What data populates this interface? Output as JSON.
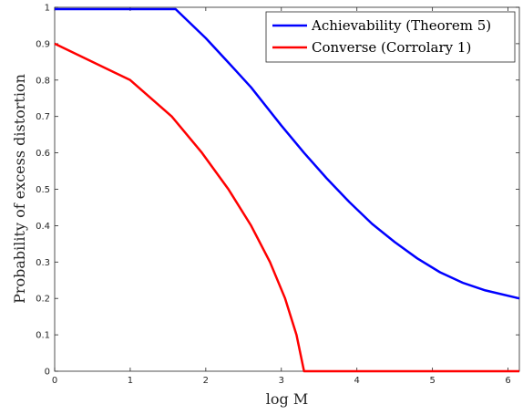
{
  "chart_data": {
    "type": "line",
    "xlabel": "log M",
    "ylabel": "Probability of excess distortion",
    "xlim": [
      0,
      6.15
    ],
    "ylim": [
      0,
      1
    ],
    "xticks": [
      "0",
      "1",
      "2",
      "3",
      "4",
      "5",
      "6"
    ],
    "yticks": [
      "0",
      "0.1",
      "0.2",
      "0.3",
      "0.4",
      "0.5",
      "0.6",
      "0.7",
      "0.8",
      "0.9",
      "1"
    ],
    "grid": false,
    "legend_position": "top-right",
    "series": [
      {
        "name": "Achievability (Theorem 5)",
        "color": "#0000ff",
        "x": [
          0,
          1.6,
          2.0,
          2.3,
          2.6,
          3.0,
          3.3,
          3.6,
          3.9,
          4.2,
          4.5,
          4.8,
          5.1,
          5.4,
          5.7,
          6.15
        ],
        "y": [
          0.995,
          0.995,
          0.915,
          0.848,
          0.78,
          0.675,
          0.6,
          0.53,
          0.465,
          0.405,
          0.355,
          0.31,
          0.272,
          0.243,
          0.222,
          0.2
        ]
      },
      {
        "name": "Converse (Corrolary 1)",
        "color": "#ff0000",
        "x": [
          0,
          1.0,
          1.55,
          1.95,
          2.3,
          2.6,
          2.85,
          3.05,
          3.2,
          3.3,
          6.15
        ],
        "y": [
          0.9,
          0.8,
          0.7,
          0.6,
          0.5,
          0.4,
          0.3,
          0.2,
          0.1,
          0.0,
          0.0
        ]
      }
    ]
  }
}
